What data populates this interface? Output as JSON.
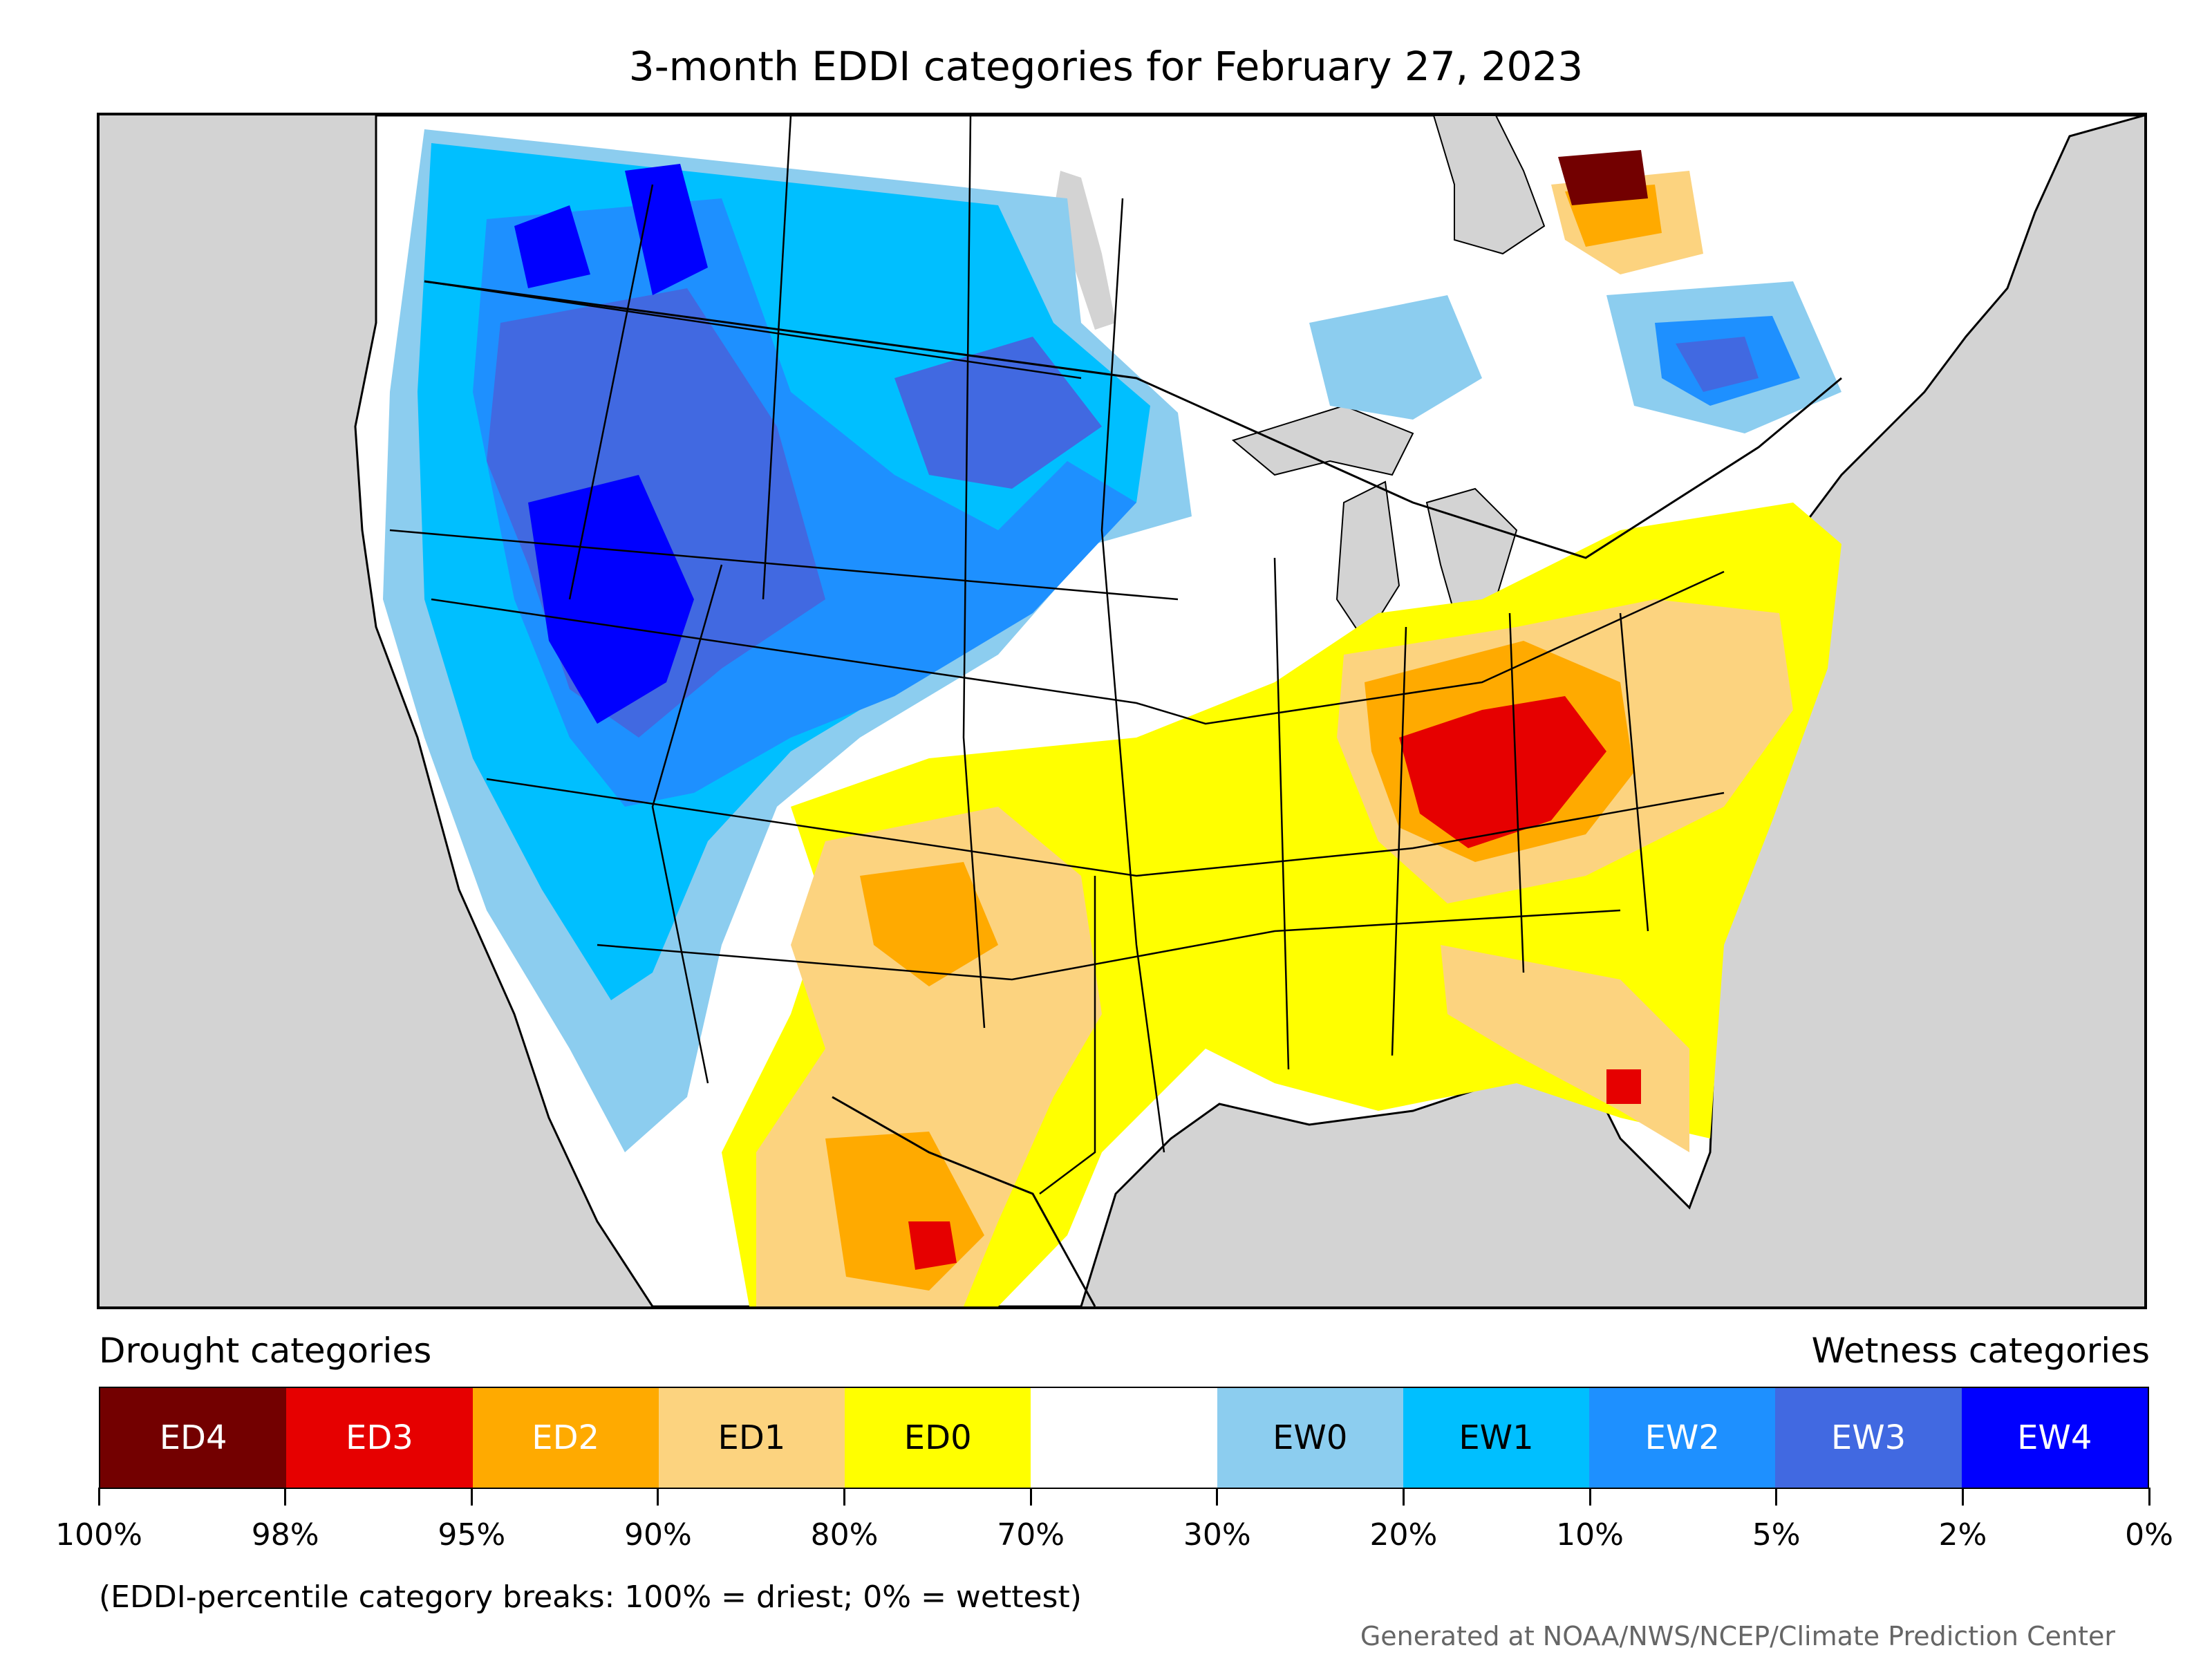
{
  "title": "3-month EDDI categories for February 27, 2023",
  "legend": {
    "drought_caption": "Drought categories",
    "wetness_caption": "Wetness categories",
    "categories": [
      {
        "label": "ED4",
        "color": "#730000",
        "text_color": "#ffffff"
      },
      {
        "label": "ED3",
        "color": "#e60000",
        "text_color": "#ffffff"
      },
      {
        "label": "ED2",
        "color": "#ffaa00",
        "text_color": "#ffffff"
      },
      {
        "label": "ED1",
        "color": "#fcd37f",
        "text_color": "#000000"
      },
      {
        "label": "ED0",
        "color": "#ffff00",
        "text_color": "#000000"
      },
      {
        "label": "",
        "color": "#ffffff",
        "text_color": "#000000"
      },
      {
        "label": "EW0",
        "color": "#8ccdef",
        "text_color": "#000000"
      },
      {
        "label": "EW1",
        "color": "#00bfff",
        "text_color": "#000000"
      },
      {
        "label": "EW2",
        "color": "#1e90ff",
        "text_color": "#ffffff"
      },
      {
        "label": "EW3",
        "color": "#4169e1",
        "text_color": "#ffffff"
      },
      {
        "label": "EW4",
        "color": "#0000ff",
        "text_color": "#ffffff"
      }
    ],
    "ticks": [
      "100%",
      "98%",
      "95%",
      "90%",
      "80%",
      "70%",
      "30%",
      "20%",
      "10%",
      "5%",
      "2%",
      "0%"
    ]
  },
  "note": "(EDDI-percentile category breaks: 100% = driest; 0% = wettest)",
  "credit": "Generated at NOAA/NWS/NCEP/Climate Prediction Center",
  "map_colors": {
    "background": "#d3d3d3",
    "land": "#ffffff",
    "border": "#000000"
  }
}
